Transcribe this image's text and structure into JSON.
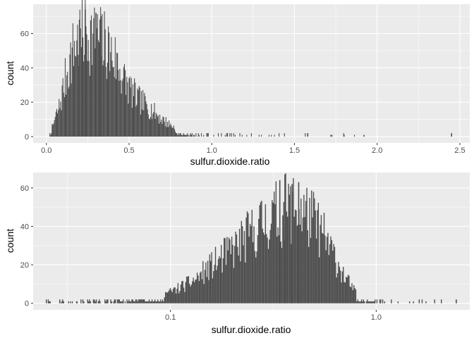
{
  "chart_data": [
    {
      "type": "bar",
      "subtype": "histogram",
      "xscale": "linear",
      "xlabel": "sulfur.dioxide.ratio",
      "ylabel": "count",
      "xlim": [
        -0.08,
        2.56
      ],
      "ylim": [
        -3.7,
        77
      ],
      "xticks": [
        0,
        0.5,
        1,
        1.5,
        2,
        2.5
      ],
      "xtick_labels": [
        "0.0",
        "0.5",
        "1.0",
        "1.5",
        "2.0",
        "2.5"
      ],
      "yticks": [
        0,
        20,
        40,
        60
      ],
      "ytick_labels": [
        "0",
        "20",
        "40",
        "60"
      ],
      "grid": true,
      "bar_color": "#4d4d4d",
      "panel_bg": "#ebebeb",
      "profile": [
        [
          0.01,
          0
        ],
        [
          0.03,
          4
        ],
        [
          0.08,
          18
        ],
        [
          0.13,
          40
        ],
        [
          0.18,
          55
        ],
        [
          0.24,
          60
        ],
        [
          0.3,
          57
        ],
        [
          0.36,
          53
        ],
        [
          0.42,
          44
        ],
        [
          0.48,
          31
        ],
        [
          0.55,
          22
        ],
        [
          0.62,
          17
        ],
        [
          0.7,
          10
        ],
        [
          0.78,
          5
        ],
        [
          0.86,
          2
        ],
        [
          0.95,
          1
        ],
        [
          1.1,
          0.6
        ],
        [
          1.4,
          0.3
        ],
        [
          1.9,
          0.15
        ],
        [
          2.0,
          0
        ]
      ],
      "outliers": [
        [
          1.58,
          2
        ],
        [
          1.72,
          1
        ],
        [
          1.8,
          1
        ],
        [
          1.92,
          1
        ],
        [
          2.45,
          2
        ]
      ],
      "peak_bins": [
        [
          0.235,
          74
        ],
        [
          0.3,
          72
        ],
        [
          0.33,
          70
        ],
        [
          0.2,
          68
        ]
      ]
    },
    {
      "type": "bar",
      "subtype": "histogram",
      "xscale": "log10",
      "xlabel": "sulfur.dioxide.ratio",
      "ylabel": "count",
      "xlim": [
        0.0215,
        2.85
      ],
      "ylim": [
        -3.4,
        68
      ],
      "xticks": [
        0.1,
        1.0
      ],
      "xtick_labels": [
        "0.1",
        "1.0"
      ],
      "yticks": [
        0,
        20,
        40,
        60
      ],
      "ytick_labels": [
        "0",
        "20",
        "40",
        "60"
      ],
      "grid": true,
      "bar_color": "#4d4d4d",
      "panel_bg": "#ebebeb",
      "profile": [
        [
          0.025,
          0.5
        ],
        [
          0.04,
          1
        ],
        [
          0.06,
          2
        ],
        [
          0.08,
          3
        ],
        [
          0.1,
          6
        ],
        [
          0.13,
          12
        ],
        [
          0.16,
          20
        ],
        [
          0.2,
          28
        ],
        [
          0.25,
          37
        ],
        [
          0.3,
          44
        ],
        [
          0.35,
          48
        ],
        [
          0.4,
          50
        ],
        [
          0.45,
          47
        ],
        [
          0.52,
          40
        ],
        [
          0.6,
          28
        ],
        [
          0.7,
          14
        ],
        [
          0.8,
          5
        ],
        [
          0.9,
          2
        ],
        [
          1.1,
          1
        ],
        [
          1.5,
          0.5
        ],
        [
          2.0,
          0.3
        ]
      ],
      "outliers": [
        [
          0.026,
          1
        ],
        [
          0.029,
          1
        ],
        [
          0.035,
          1
        ],
        [
          2.45,
          2
        ]
      ],
      "peak_bins": [
        [
          0.36,
          67
        ],
        [
          0.34,
          64
        ],
        [
          0.42,
          63
        ],
        [
          0.39,
          62
        ]
      ]
    }
  ]
}
